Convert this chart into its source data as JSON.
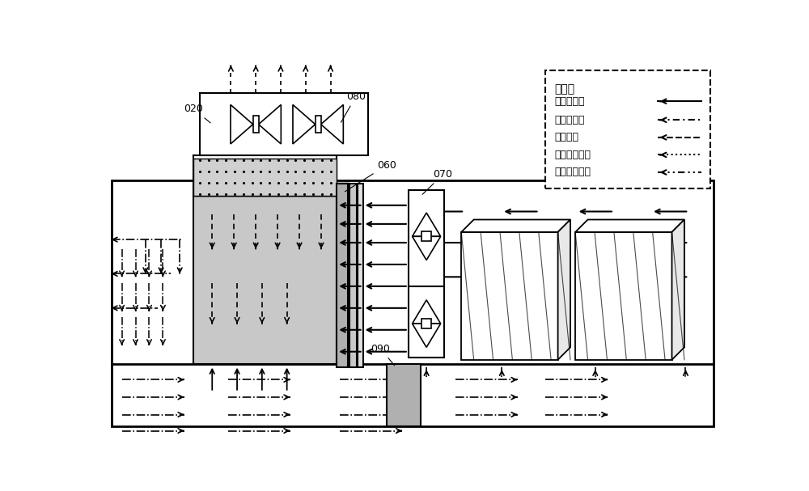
{
  "bg_color": "#ffffff",
  "legend_title": "图例：",
  "legend_items": [
    "一次热空气",
    "一次冷空气",
    "二次空气",
    "二次冷湿空气",
    "二次热湿空气"
  ],
  "gray_light": "#c8c8c8",
  "gray_mid": "#b0b0b0",
  "gray_dark": "#909090",
  "gray_spray": "#d0d0d0"
}
